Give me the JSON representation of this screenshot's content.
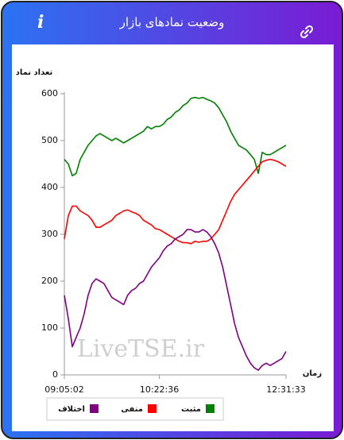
{
  "header": {
    "title": "وضعیت نمادهای بازار",
    "info": "i"
  },
  "chart_data": {
    "type": "line",
    "y_label": "تعداد نماد",
    "x_label": "زمان",
    "watermark": "LiveTSE.ir",
    "categories": [
      "09:05:02",
      null,
      null,
      null,
      null,
      null,
      null,
      null,
      null,
      null,
      null,
      null,
      null,
      null,
      null,
      null,
      null,
      null,
      null,
      null,
      null,
      null,
      null,
      null,
      "10:22:36",
      null,
      null,
      null,
      null,
      null,
      null,
      null,
      null,
      null,
      null,
      null,
      null,
      null,
      null,
      null,
      null,
      null,
      null,
      null,
      null,
      null,
      null,
      null,
      null,
      null,
      null,
      null,
      null,
      null,
      null,
      null,
      "12:31:33"
    ],
    "series": [
      {
        "name": "مثبت",
        "color": "#008000",
        "values": [
          460,
          450,
          425,
          430,
          460,
          475,
          490,
          500,
          510,
          515,
          510,
          505,
          500,
          505,
          500,
          495,
          500,
          505,
          510,
          515,
          520,
          530,
          525,
          530,
          530,
          535,
          545,
          550,
          560,
          565,
          575,
          580,
          590,
          592,
          590,
          592,
          588,
          585,
          580,
          570,
          555,
          540,
          520,
          505,
          490,
          485,
          480,
          470,
          460,
          430,
          475,
          470,
          470,
          475,
          480,
          485,
          490
        ]
      },
      {
        "name": "منفی",
        "color": "#ff0000",
        "values": [
          290,
          340,
          360,
          360,
          350,
          345,
          340,
          330,
          315,
          315,
          320,
          325,
          330,
          340,
          345,
          350,
          352,
          348,
          345,
          340,
          330,
          325,
          320,
          312,
          310,
          305,
          300,
          295,
          290,
          285,
          282,
          282,
          280,
          285,
          283,
          285,
          285,
          290,
          300,
          310,
          330,
          350,
          370,
          385,
          395,
          405,
          415,
          425,
          435,
          445,
          455,
          458,
          460,
          458,
          455,
          450,
          445
        ]
      },
      {
        "name": "اختلاف",
        "color": "#800080",
        "values": [
          170,
          120,
          60,
          80,
          100,
          130,
          170,
          195,
          205,
          200,
          195,
          180,
          165,
          160,
          155,
          150,
          170,
          180,
          185,
          195,
          200,
          215,
          230,
          240,
          250,
          265,
          275,
          280,
          290,
          295,
          300,
          310,
          310,
          305,
          305,
          310,
          305,
          295,
          280,
          260,
          230,
          190,
          150,
          110,
          80,
          60,
          40,
          25,
          15,
          10,
          20,
          25,
          20,
          25,
          30,
          35,
          50
        ]
      }
    ],
    "ylim": [
      0,
      600
    ],
    "yticks": [
      0,
      100,
      200,
      300,
      400,
      500,
      600
    ],
    "legend": "bottom"
  }
}
